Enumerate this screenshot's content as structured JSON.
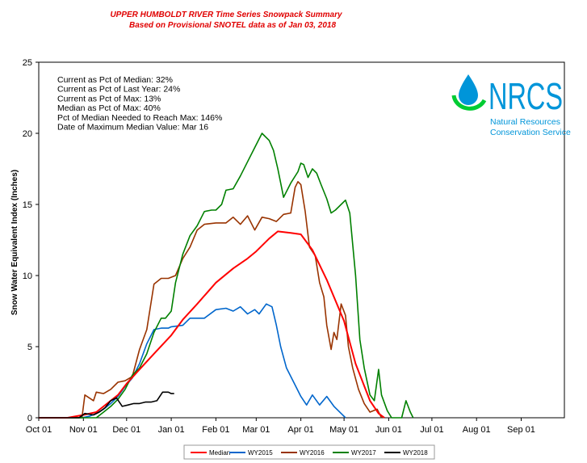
{
  "chart_data": {
    "type": "line",
    "title": "UPPER HUMBOLDT RIVER Time Series Snowpack Summary",
    "subtitle": "Based on Provisional SNOTEL data as of Jan 03, 2018",
    "ylabel": "Snow Water Equivalent Index (Inches)",
    "ylim": [
      0,
      25
    ],
    "yticks": [
      "0",
      "5",
      "10",
      "15",
      "20",
      "25"
    ],
    "xlim": [
      0,
      365
    ],
    "xticks": [
      {
        "label": "Oct 01",
        "day": 0
      },
      {
        "label": "Nov 01",
        "day": 31
      },
      {
        "label": "Dec 01",
        "day": 61
      },
      {
        "label": "Jan 01",
        "day": 92
      },
      {
        "label": "Feb 01",
        "day": 123
      },
      {
        "label": "Mar 01",
        "day": 151
      },
      {
        "label": "Apr 01",
        "day": 182
      },
      {
        "label": "May 01",
        "day": 212
      },
      {
        "label": "Jun 01",
        "day": 243
      },
      {
        "label": "Jul 01",
        "day": 273
      },
      {
        "label": "Aug 01",
        "day": 304
      },
      {
        "label": "Sep 01",
        "day": 335
      }
    ],
    "stats": [
      "Current as Pct of Median:  32%",
      "Current as Pct of Last Year: 24%",
      "Current as Pct of Max: 13%",
      "Median  as Pct of Max: 40%",
      "Pct of Median Needed to Reach Max: 146%",
      "Date of Maximum  Median Value: Mar 16"
    ],
    "legend_position": "bottom",
    "series": [
      {
        "name": "Median",
        "color": "#ff0000",
        "x": [
          0,
          20,
          31,
          40,
          45,
          55,
          61,
          70,
          80,
          92,
          100,
          110,
          123,
          135,
          145,
          151,
          160,
          166,
          175,
          182,
          190,
          200,
          212,
          220,
          230,
          236,
          240
        ],
        "y": [
          0,
          0,
          0.2,
          0.4,
          0.8,
          1.6,
          2.4,
          3.4,
          4.5,
          5.8,
          6.9,
          8.0,
          9.5,
          10.5,
          11.2,
          11.7,
          12.6,
          13.1,
          13.0,
          12.9,
          11.8,
          9.7,
          6.8,
          3.8,
          1.2,
          0.3,
          0
        ]
      },
      {
        "name": "WY2015",
        "color": "#0066cc",
        "x": [
          0,
          30,
          35,
          40,
          45,
          50,
          55,
          60,
          65,
          70,
          75,
          80,
          85,
          90,
          92,
          100,
          105,
          110,
          115,
          123,
          130,
          135,
          140,
          145,
          150,
          153,
          158,
          162,
          165,
          168,
          172,
          178,
          182,
          186,
          190,
          195,
          200,
          205,
          210,
          213
        ],
        "y": [
          0,
          0,
          0.1,
          0.3,
          0.6,
          1.0,
          1.5,
          2.2,
          2.8,
          3.8,
          5.2,
          6.2,
          6.3,
          6.3,
          6.4,
          6.5,
          7.0,
          7.0,
          7.0,
          7.6,
          7.7,
          7.5,
          7.8,
          7.3,
          7.6,
          7.3,
          8.0,
          7.8,
          6.5,
          5.0,
          3.5,
          2.3,
          1.5,
          0.9,
          1.6,
          0.9,
          1.5,
          0.8,
          0.3,
          0
        ]
      },
      {
        "name": "WY2016",
        "color": "#993300",
        "x": [
          0,
          30,
          32,
          38,
          40,
          45,
          50,
          55,
          60,
          65,
          70,
          75,
          80,
          85,
          90,
          95,
          100,
          105,
          110,
          115,
          123,
          130,
          135,
          140,
          145,
          150,
          155,
          160,
          165,
          170,
          175,
          178,
          180,
          182,
          185,
          188,
          192,
          195,
          198,
          200,
          203,
          205,
          207,
          210,
          213,
          215,
          218,
          222,
          226,
          230,
          235,
          238
        ],
        "y": [
          0,
          0,
          1.6,
          1.2,
          1.8,
          1.7,
          2.0,
          2.5,
          2.6,
          2.9,
          4.8,
          6.2,
          9.4,
          9.8,
          9.8,
          10.0,
          11.2,
          12.0,
          13.2,
          13.6,
          13.7,
          13.7,
          14.1,
          13.6,
          14.2,
          13.2,
          14.1,
          14.0,
          13.8,
          14.3,
          14.4,
          16.2,
          16.6,
          16.4,
          14.5,
          12.0,
          11.4,
          9.5,
          8.5,
          6.5,
          4.8,
          6.0,
          5.5,
          8.0,
          7.2,
          5.0,
          3.5,
          2.0,
          1.0,
          0.4,
          0.6,
          0
        ]
      },
      {
        "name": "WY2017",
        "color": "#008000",
        "x": [
          0,
          40,
          45,
          50,
          55,
          60,
          65,
          70,
          75,
          80,
          85,
          88,
          92,
          95,
          100,
          105,
          110,
          115,
          120,
          123,
          127,
          130,
          135,
          140,
          145,
          150,
          153,
          155,
          157,
          160,
          163,
          166,
          170,
          175,
          180,
          182,
          184,
          187,
          190,
          193,
          196,
          200,
          203,
          206,
          210,
          213,
          216,
          220,
          223,
          226,
          230,
          233,
          236,
          238,
          242,
          245,
          248,
          252,
          255,
          258,
          260
        ],
        "y": [
          0,
          0,
          0.4,
          0.8,
          1.3,
          2.0,
          3.0,
          3.5,
          4.5,
          6.0,
          7.0,
          7.0,
          7.5,
          9.5,
          11.5,
          12.8,
          13.5,
          14.5,
          14.6,
          14.6,
          15.0,
          16.0,
          16.1,
          17.0,
          18.0,
          19.0,
          19.6,
          20.0,
          19.8,
          19.5,
          18.8,
          17.5,
          15.5,
          16.5,
          17.3,
          17.9,
          17.8,
          16.9,
          17.5,
          17.2,
          16.4,
          15.4,
          14.4,
          14.6,
          15.0,
          15.3,
          14.4,
          10.0,
          5.5,
          3.5,
          1.6,
          1.2,
          3.4,
          1.6,
          0.5,
          0,
          0,
          0,
          1.2,
          0.4,
          0
        ]
      },
      {
        "name": "WY2018",
        "color": "#000000",
        "x": [
          0,
          28,
          32,
          38,
          42,
          46,
          50,
          54,
          58,
          62,
          66,
          70,
          74,
          78,
          82,
          86,
          90,
          92,
          94
        ],
        "y": [
          0,
          0,
          0.3,
          0.2,
          0.4,
          0.7,
          1.2,
          1.4,
          0.8,
          0.9,
          1.0,
          1.0,
          1.1,
          1.1,
          1.2,
          1.8,
          1.8,
          1.7,
          1.7
        ]
      }
    ]
  },
  "logo": {
    "wordmark": "NRCS",
    "line1": "Natural Resources",
    "line2": "Conservation Service",
    "color": "#0095d9",
    "accent": "#00cc33"
  }
}
